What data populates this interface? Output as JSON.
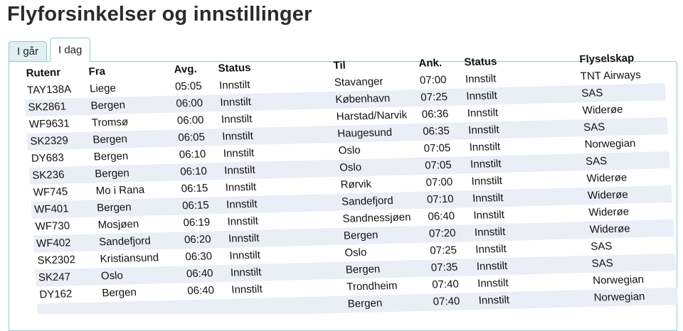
{
  "page": {
    "title": "Flyforsinkelser og innstillinger"
  },
  "tabs": [
    {
      "label": "I går"
    },
    {
      "label": "I dag"
    }
  ],
  "table": {
    "headers": {
      "route": "Rutenr",
      "from": "Fra",
      "dep": "Avg.",
      "status1": "Status",
      "to": "Til",
      "arr": "Ank.",
      "status2": "Status",
      "airline": "Flyselskap"
    },
    "rows": [
      {
        "route": "TAY138A",
        "from": "Liege",
        "dep": "05:05",
        "status1": "Innstilt",
        "to": "Stavanger",
        "arr": "07:00",
        "status2": "Innstilt",
        "airline": "TNT Airways"
      },
      {
        "route": "SK2861",
        "from": "Bergen",
        "dep": "06:00",
        "status1": "Innstilt",
        "to": "København",
        "arr": "07:25",
        "status2": "Innstilt",
        "airline": "SAS"
      },
      {
        "route": "WF9631",
        "from": "Tromsø",
        "dep": "06:00",
        "status1": "Innstilt",
        "to": "Harstad/Narvik",
        "arr": "06:36",
        "status2": "Innstilt",
        "airline": "Widerøe"
      },
      {
        "route": "SK2329",
        "from": "Bergen",
        "dep": "06:05",
        "status1": "Innstilt",
        "to": "Haugesund",
        "arr": "06:35",
        "status2": "Innstilt",
        "airline": "SAS"
      },
      {
        "route": "DY683",
        "from": "Bergen",
        "dep": "06:10",
        "status1": "Innstilt",
        "to": "Oslo",
        "arr": "07:05",
        "status2": "Innstilt",
        "airline": "Norwegian"
      },
      {
        "route": "SK236",
        "from": "Bergen",
        "dep": "06:10",
        "status1": "Innstilt",
        "to": "Oslo",
        "arr": "07:05",
        "status2": "Innstilt",
        "airline": "SAS"
      },
      {
        "route": "WF745",
        "from": "Mo i Rana",
        "dep": "06:15",
        "status1": "Innstilt",
        "to": "Rørvik",
        "arr": "07:00",
        "status2": "Innstilt",
        "airline": "Widerøe"
      },
      {
        "route": "WF401",
        "from": "Bergen",
        "dep": "06:15",
        "status1": "Innstilt",
        "to": "Sandefjord",
        "arr": "07:10",
        "status2": "Innstilt",
        "airline": "Widerøe"
      },
      {
        "route": "WF730",
        "from": "Mosjøen",
        "dep": "06:19",
        "status1": "Innstilt",
        "to": "Sandnessjøen",
        "arr": "06:40",
        "status2": "Innstilt",
        "airline": "Widerøe"
      },
      {
        "route": "WF402",
        "from": "Sandefjord",
        "dep": "06:20",
        "status1": "Innstilt",
        "to": "Bergen",
        "arr": "07:20",
        "status2": "Innstilt",
        "airline": "Widerøe"
      },
      {
        "route": "SK2302",
        "from": "Kristiansund",
        "dep": "06:30",
        "status1": "Innstilt",
        "to": "Oslo",
        "arr": "07:25",
        "status2": "Innstilt",
        "airline": "SAS"
      },
      {
        "route": "SK247",
        "from": "Oslo",
        "dep": "06:40",
        "status1": "Innstilt",
        "to": "Bergen",
        "arr": "07:35",
        "status2": "Innstilt",
        "airline": "SAS"
      },
      {
        "route": "DY162",
        "from": "Bergen",
        "dep": "06:40",
        "status1": "Innstilt",
        "to": "Trondheim",
        "arr": "07:40",
        "status2": "Innstilt",
        "airline": "Norwegian"
      },
      {
        "route": "",
        "from": "",
        "dep": "",
        "status1": "",
        "to": "Bergen",
        "arr": "07:40",
        "status2": "Innstilt",
        "airline": "Norwegian"
      }
    ]
  },
  "colors": {
    "tab_border": "#8ec9d0",
    "row_alt": "#e9eef7",
    "title": "#2b2b2b"
  }
}
